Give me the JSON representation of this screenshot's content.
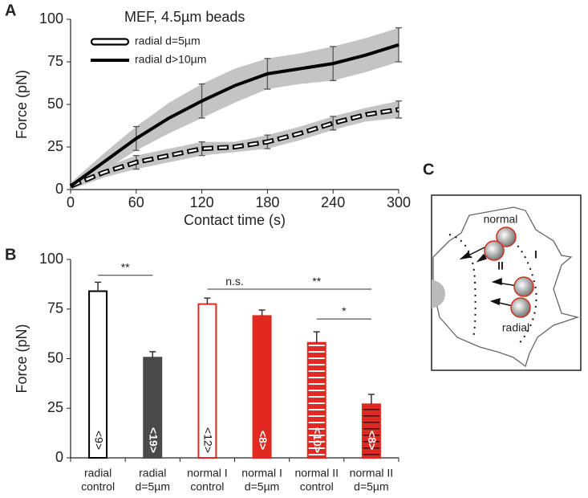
{
  "panels": [
    "A",
    "B",
    "C"
  ],
  "chart_data": [
    {
      "type": "line",
      "title": "MEF, 4.5µm beads",
      "xlabel": "Contact time (s)",
      "ylabel": "Force (pN)",
      "x": [
        0,
        30,
        60,
        90,
        120,
        150,
        180,
        210,
        240,
        270,
        300
      ],
      "xlim": [
        0,
        300
      ],
      "xticks": [
        0,
        60,
        120,
        180,
        240,
        300
      ],
      "ylim": [
        0,
        100
      ],
      "yticks": [
        0,
        25,
        50,
        75,
        100
      ],
      "band_color": "#c4c4c4",
      "series": [
        {
          "name": "radial d=5µm",
          "color": "#000000",
          "dashed": true,
          "values": [
            2,
            10,
            16,
            20,
            24,
            25,
            28,
            33,
            39,
            44,
            47
          ],
          "band": [
            2,
            3,
            4,
            4,
            4,
            3,
            4,
            4,
            4,
            4,
            5
          ],
          "errors": [
            null,
            null,
            4,
            null,
            4,
            null,
            4,
            null,
            4,
            null,
            5
          ]
        },
        {
          "name": "radial d>10µm",
          "color": "#000000",
          "dashed": false,
          "values": [
            2,
            16,
            30,
            42,
            52,
            61,
            68,
            71,
            74,
            79,
            85
          ],
          "band": [
            2,
            5,
            7,
            9,
            10,
            10,
            9,
            9,
            10,
            10,
            10
          ],
          "errors": [
            null,
            null,
            7,
            null,
            10,
            null,
            9,
            null,
            10,
            null,
            10
          ]
        }
      ]
    },
    {
      "type": "bar",
      "ylabel": "Force (pN)",
      "categories": [
        [
          "radial",
          "control"
        ],
        [
          "radial",
          "d=5µm"
        ],
        [
          "normal I",
          "control"
        ],
        [
          "normal I",
          "d=5µm"
        ],
        [
          "normal II",
          "control"
        ],
        [
          "normal II",
          "d=5µm"
        ]
      ],
      "values": [
        84,
        50.5,
        77.5,
        71.5,
        58,
        27
      ],
      "errors": [
        4.5,
        3,
        3,
        3,
        5.5,
        5
      ],
      "n_labels": [
        "<9>",
        "<19>",
        "<12>",
        "<8>",
        "<10>",
        "<8>"
      ],
      "fills": [
        "#ffffff",
        "#4a4a4a",
        "#ffffff",
        "#e02a20",
        "#e02a20",
        "#e02a20"
      ],
      "edges": [
        "#000000",
        "#4a4a4a",
        "#e02a20",
        "#e02a20",
        "#e02a20",
        "#e02a20"
      ],
      "hatch": [
        null,
        null,
        null,
        null,
        "white",
        "black"
      ],
      "ylim": [
        0,
        100
      ],
      "yticks": [
        0,
        25,
        50,
        75,
        100
      ],
      "significance": [
        {
          "from": 0,
          "to": 1,
          "y": 92,
          "label": "**"
        },
        {
          "from": 2,
          "to": 3,
          "y": 85,
          "label": "n.s."
        },
        {
          "from": 3,
          "to": 5,
          "y": 85,
          "label": "**"
        },
        {
          "from": 4,
          "to": 5,
          "y": 70,
          "label": "*"
        }
      ]
    }
  ],
  "diagram": {
    "labels": [
      "normal",
      "I",
      "II",
      "radial"
    ]
  }
}
